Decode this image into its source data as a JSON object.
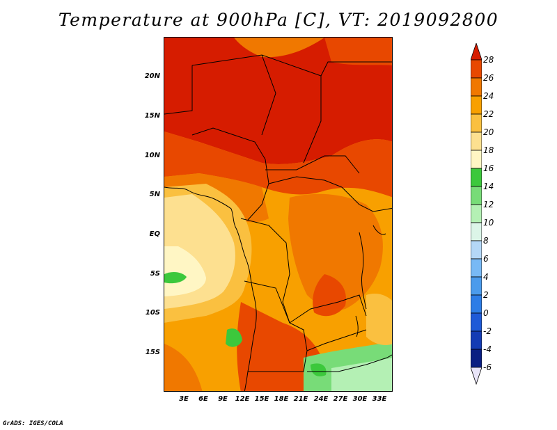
{
  "title": "Temperature at 900hPa [C], VT: 2019092800",
  "credit": "GrADS: IGES/COLA",
  "map": {
    "lat_ticks": [
      "20N",
      "15N",
      "10N",
      "5N",
      "EQ",
      "5S",
      "10S",
      "15S"
    ],
    "lon_ticks": [
      "3E",
      "6E",
      "9E",
      "12E",
      "15E",
      "18E",
      "21E",
      "24E",
      "27E",
      "30E",
      "33E"
    ]
  },
  "colorbar": {
    "levels": [
      "28",
      "26",
      "24",
      "22",
      "20",
      "18",
      "16",
      "14",
      "12",
      "10",
      "8",
      "6",
      "4",
      "2",
      "0",
      "-2",
      "-4",
      "-6"
    ],
    "colors": [
      "#d61c00",
      "#e84800",
      "#f07800",
      "#f8a000",
      "#fac040",
      "#fde090",
      "#fff6c4",
      "#3cc83c",
      "#78dc78",
      "#b4f0b4",
      "#dcf5e8",
      "#b4d7f7",
      "#78b9f5",
      "#4b9bec",
      "#2d7de6",
      "#1e5ad7",
      "#143cb4",
      "#0a1e82",
      "#e8e4f8"
    ],
    "top_cap_color": "#d61c00",
    "bottom_cap_color": "#e8e4f8"
  }
}
